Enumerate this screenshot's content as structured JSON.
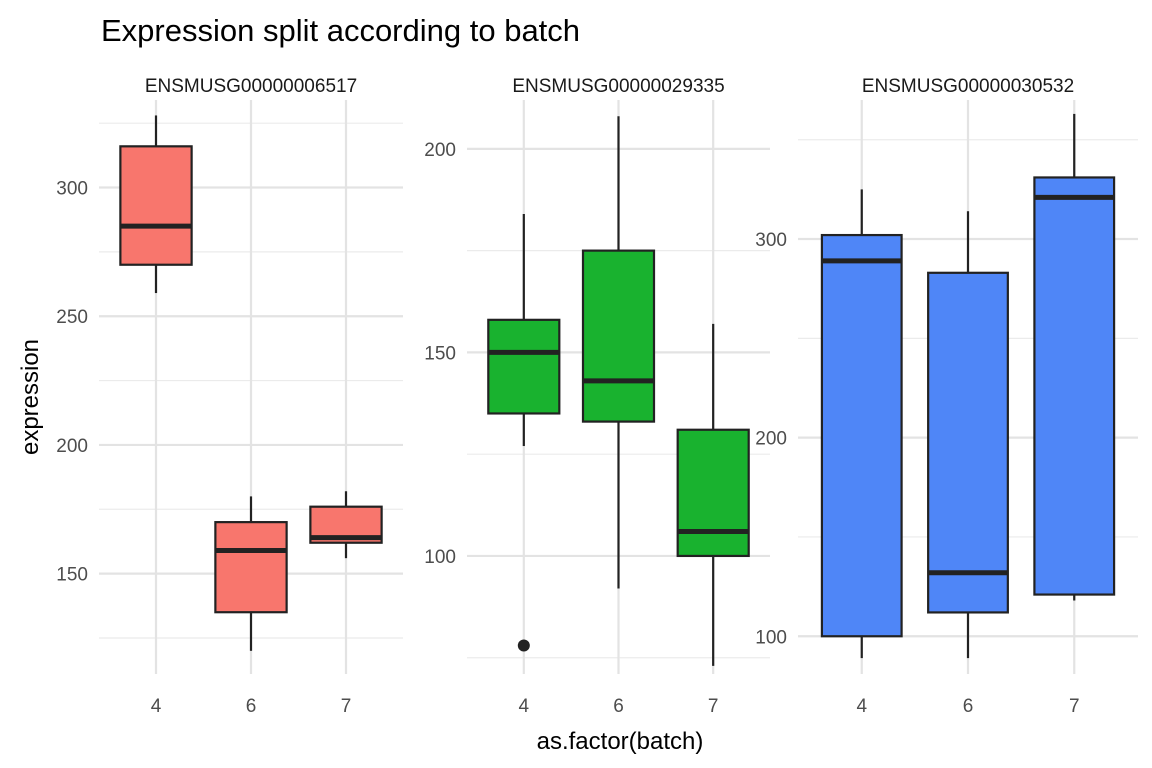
{
  "title": "Expression split according to batch",
  "xlabel": "as.factor(batch)",
  "ylabel": "expression",
  "chart_data": [
    {
      "type": "box",
      "panel": "ENSMUSG00000006517",
      "color": "#F8766D",
      "categories": [
        "4",
        "6",
        "7"
      ],
      "boxes": [
        {
          "lower_whisker": 259,
          "q1": 270,
          "median": 285,
          "q3": 316,
          "upper_whisker": 328,
          "outliers": []
        },
        {
          "lower_whisker": 120,
          "q1": 135,
          "median": 159,
          "q3": 170,
          "upper_whisker": 180,
          "outliers": []
        },
        {
          "lower_whisker": 156,
          "q1": 162,
          "median": 164,
          "q3": 176,
          "upper_whisker": 182,
          "outliers": []
        }
      ],
      "ylim": [
        111,
        334
      ],
      "yticks": [
        150,
        200,
        250,
        300
      ]
    },
    {
      "type": "box",
      "panel": "ENSMUSG00000029335",
      "color": "#19B22F",
      "categories": [
        "4",
        "6",
        "7"
      ],
      "boxes": [
        {
          "lower_whisker": 127,
          "q1": 135,
          "median": 150,
          "q3": 158,
          "upper_whisker": 184,
          "outliers": [
            78
          ]
        },
        {
          "lower_whisker": 92,
          "q1": 133,
          "median": 143,
          "q3": 175,
          "upper_whisker": 208,
          "outliers": []
        },
        {
          "lower_whisker": 73,
          "q1": 100,
          "median": 106,
          "q3": 131,
          "upper_whisker": 157,
          "outliers": []
        }
      ],
      "ylim": [
        71,
        212
      ],
      "yticks": [
        100,
        150,
        200
      ]
    },
    {
      "type": "box",
      "panel": "ENSMUSG00000030532",
      "color": "#4F86F7",
      "categories": [
        "4",
        "6",
        "7"
      ],
      "boxes": [
        {
          "lower_whisker": 89,
          "q1": 100,
          "median": 289,
          "q3": 302,
          "upper_whisker": 325,
          "outliers": []
        },
        {
          "lower_whisker": 89,
          "q1": 112,
          "median": 132,
          "q3": 283,
          "upper_whisker": 314,
          "outliers": []
        },
        {
          "lower_whisker": 118,
          "q1": 121,
          "median": 321,
          "q3": 331,
          "upper_whisker": 363,
          "outliers": []
        }
      ],
      "ylim": [
        81,
        370
      ],
      "yticks": [
        100,
        200,
        300
      ]
    }
  ]
}
